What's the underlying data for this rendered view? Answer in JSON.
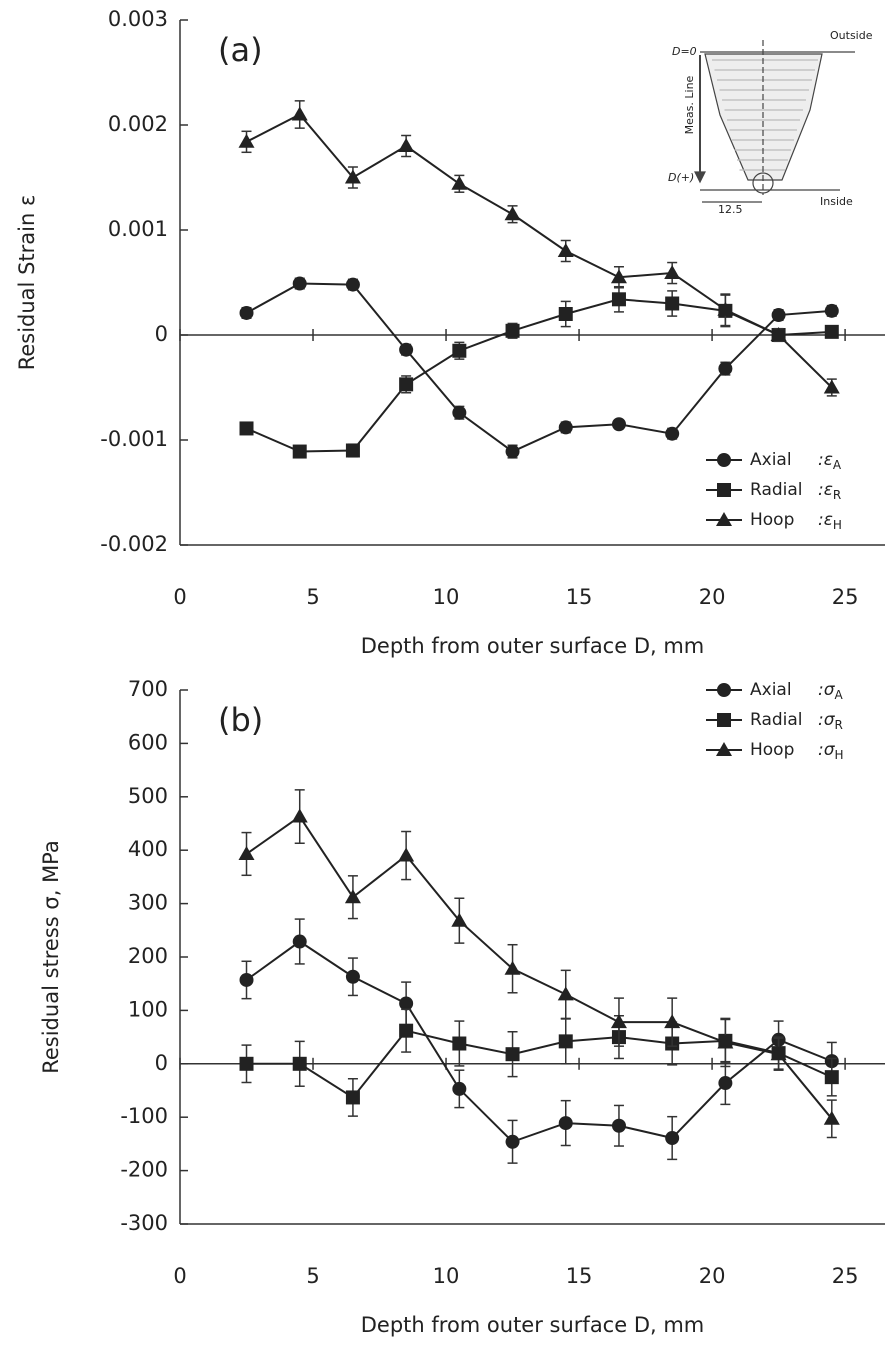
{
  "chart_data": [
    {
      "type": "line",
      "panel_label": "(a)",
      "x_label": "Depth from outer surface D, mm",
      "y_label": "Residual Strain ε",
      "x": [
        2.5,
        4.5,
        6.5,
        8.5,
        10.5,
        12.5,
        14.5,
        16.5,
        18.5,
        20.5,
        22.5,
        24.5
      ],
      "xlim": [
        0,
        26.5
      ],
      "xticks": [
        0,
        5,
        10,
        15,
        20,
        25
      ],
      "ylim": [
        -0.002,
        0.003
      ],
      "yticks": [
        -0.002,
        -0.001,
        0,
        0.001,
        0.002,
        0.003
      ],
      "legend": "lower right",
      "series": [
        {
          "name": "Axial",
          "symbol": ":ε",
          "subscript": "A",
          "marker": "circle",
          "color": "#222",
          "values": [
            0.00021,
            0.00049,
            0.00048,
            -0.00014,
            -0.00074,
            -0.00111,
            -0.00088,
            -0.00085,
            -0.00094,
            -0.00032,
            0.00019,
            0.00023
          ],
          "errors": [
            5e-05,
            5e-05,
            5e-05,
            5e-05,
            6e-05,
            6e-05,
            5e-05,
            4e-05,
            5e-05,
            6e-05,
            5e-05,
            5e-05
          ]
        },
        {
          "name": "Radial",
          "symbol": ":ε",
          "subscript": "R",
          "marker": "square",
          "color": "#222",
          "values": [
            -0.00089,
            -0.00111,
            -0.0011,
            -0.00047,
            -0.00015,
            4e-05,
            0.0002,
            0.00034,
            0.0003,
            0.00023,
            0,
            3e-05
          ],
          "errors": [
            4e-05,
            5e-05,
            6e-05,
            8e-05,
            8e-05,
            7e-05,
            0.00012,
            0.00012,
            0.00012,
            0.00015,
            6e-05,
            4e-05
          ]
        },
        {
          "name": "Hoop",
          "symbol": ":ε",
          "subscript": "H",
          "marker": "triangle",
          "color": "#222",
          "values": [
            0.00184,
            0.0021,
            0.0015,
            0.0018,
            0.00144,
            0.00115,
            0.0008,
            0.00055,
            0.00059,
            0.00024,
            0,
            -0.0005
          ],
          "errors": [
            0.0001,
            0.00013,
            0.0001,
            0.0001,
            8e-05,
            8e-05,
            0.0001,
            0.0001,
            0.0001,
            0.00015,
            6e-05,
            8e-05
          ]
        }
      ],
      "inset": {
        "labels": [
          "D=0",
          "Outside",
          "Meas. Line",
          "D(+)",
          "12.5",
          "Inside"
        ]
      }
    },
    {
      "type": "line",
      "panel_label": "(b)",
      "x_label": "Depth from outer surface D, mm",
      "y_label": "Residual stress σ, MPa",
      "x": [
        2.5,
        4.5,
        6.5,
        8.5,
        10.5,
        12.5,
        14.5,
        16.5,
        18.5,
        20.5,
        22.5,
        24.5
      ],
      "xlim": [
        0,
        26.5
      ],
      "xticks": [
        0,
        5,
        10,
        15,
        20,
        25
      ],
      "ylim": [
        -300,
        700
      ],
      "yticks": [
        -300,
        -200,
        -100,
        0,
        100,
        200,
        300,
        400,
        500,
        600,
        700
      ],
      "legend": "upper right",
      "series": [
        {
          "name": "Axial",
          "symbol": ":σ",
          "subscript": "A",
          "marker": "circle",
          "color": "#222",
          "values": [
            157,
            229,
            163,
            113,
            -47,
            -146,
            -111,
            -116,
            -139,
            -36,
            45,
            5
          ],
          "errors": [
            35,
            42,
            35,
            40,
            35,
            40,
            42,
            38,
            40,
            40,
            35,
            35
          ]
        },
        {
          "name": "Radial",
          "symbol": ":σ",
          "subscript": "R",
          "marker": "square",
          "color": "#222",
          "values": [
            0,
            0,
            -63,
            62,
            38,
            18,
            42,
            50,
            38,
            43,
            20,
            -25
          ],
          "errors": [
            35,
            42,
            35,
            40,
            42,
            42,
            42,
            40,
            40,
            40,
            30,
            35
          ]
        },
        {
          "name": "Hoop",
          "symbol": ":σ",
          "subscript": "H",
          "marker": "triangle",
          "color": "#222",
          "values": [
            393,
            463,
            312,
            390,
            268,
            178,
            130,
            78,
            78,
            40,
            18,
            -103
          ],
          "errors": [
            40,
            50,
            40,
            45,
            42,
            45,
            45,
            45,
            45,
            45,
            30,
            35
          ]
        }
      ]
    }
  ]
}
